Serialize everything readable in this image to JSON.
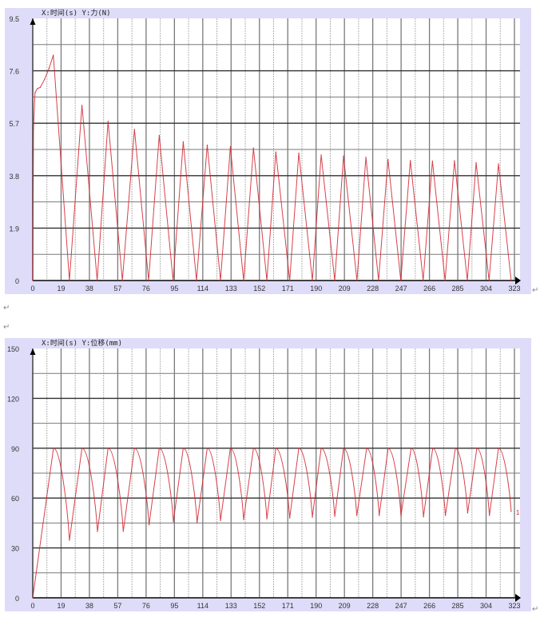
{
  "paragraph_mark": "↵",
  "colors": {
    "panel": "#dedcf8",
    "plot": "#ffffff",
    "series": "#d0202a",
    "major_grid": "#7a7a7a",
    "minor_grid": "#b4b4b4",
    "axis": "#404040"
  },
  "chart_data": [
    {
      "type": "line",
      "title": "X:时间(s)   Y:力(N)",
      "xlim": [
        0,
        323
      ],
      "ylim": [
        0,
        9.5
      ],
      "x_ticks": [
        "0",
        "19",
        "38",
        "57",
        "76",
        "95",
        "114",
        "133",
        "152",
        "171",
        "190",
        "209",
        "228",
        "247",
        "266",
        "285",
        "304",
        "323"
      ],
      "y_ticks": [
        "0",
        "1.9",
        "3.8",
        "5.7",
        "7.6",
        "9.5"
      ],
      "grid": true,
      "series": [
        {
          "x": [
            0,
            0.5,
            1.5,
            3,
            5,
            8,
            11,
            13.8,
            24.6,
            33,
            43.2,
            50.5,
            60.1,
            68.2,
            77.7,
            84.8,
            94.1,
            100.9,
            109.8,
            117,
            125.9,
            132.5,
            141.4,
            148,
            157,
            163,
            172.3,
            178.4,
            187.5,
            193.4,
            202.5,
            208.4,
            217.4,
            223.4,
            231.9,
            238.2,
            246.8,
            253.2,
            261.8,
            268,
            276.5,
            282.8,
            291.4,
            297.3,
            306,
            312.3,
            320.8
          ],
          "y": [
            0,
            5.5,
            6.8,
            6.95,
            7.0,
            7.3,
            7.7,
            8.17,
            0,
            6.35,
            0,
            5.77,
            0,
            5.48,
            0,
            5.26,
            0,
            5.03,
            0,
            4.91,
            0,
            4.85,
            0,
            4.8,
            0,
            4.66,
            0,
            4.62,
            0,
            4.55,
            0,
            4.51,
            0,
            4.47,
            0,
            4.39,
            0,
            4.35,
            0,
            4.33,
            0,
            4.34,
            0,
            4.27,
            0,
            4.23,
            0
          ]
        }
      ]
    },
    {
      "type": "line",
      "title": "X:时间(s)   Y:位移(mm)",
      "xlim": [
        0,
        323
      ],
      "ylim": [
        0,
        150
      ],
      "x_ticks": [
        "0",
        "19",
        "38",
        "57",
        "76",
        "95",
        "114",
        "133",
        "152",
        "171",
        "190",
        "209",
        "228",
        "247",
        "266",
        "285",
        "304",
        "323"
      ],
      "y_ticks": [
        "0",
        "30",
        "60",
        "90",
        "120",
        "150"
      ],
      "grid": true,
      "end_label": "1",
      "series": [
        {
          "x": [
            0,
            13.9,
            24.6,
            33,
            43.4,
            50.5,
            60.7,
            68.2,
            78,
            84.8,
            94.3,
            100.9,
            110.2,
            117,
            125.9,
            132.5,
            141.4,
            148,
            157,
            163,
            172.3,
            178.4,
            187.5,
            193.4,
            202.5,
            208.4,
            217.3,
            223.9,
            232.3,
            238.3,
            246.9,
            253.7,
            262,
            268.2,
            276.7,
            283.4,
            291.6,
            297.8,
            306.2,
            312.3,
            320.8
          ],
          "y": [
            0,
            90,
            34.6,
            90,
            39.9,
            90,
            40,
            90,
            43.9,
            90,
            45.7,
            90,
            45.3,
            90,
            46.5,
            90,
            47,
            90,
            47.5,
            90,
            48,
            90,
            48.5,
            90,
            49,
            90,
            49.5,
            90,
            49.5,
            90,
            49.5,
            90,
            48.7,
            90,
            49.5,
            90,
            51,
            90,
            49.5,
            90,
            52
          ]
        }
      ]
    }
  ]
}
